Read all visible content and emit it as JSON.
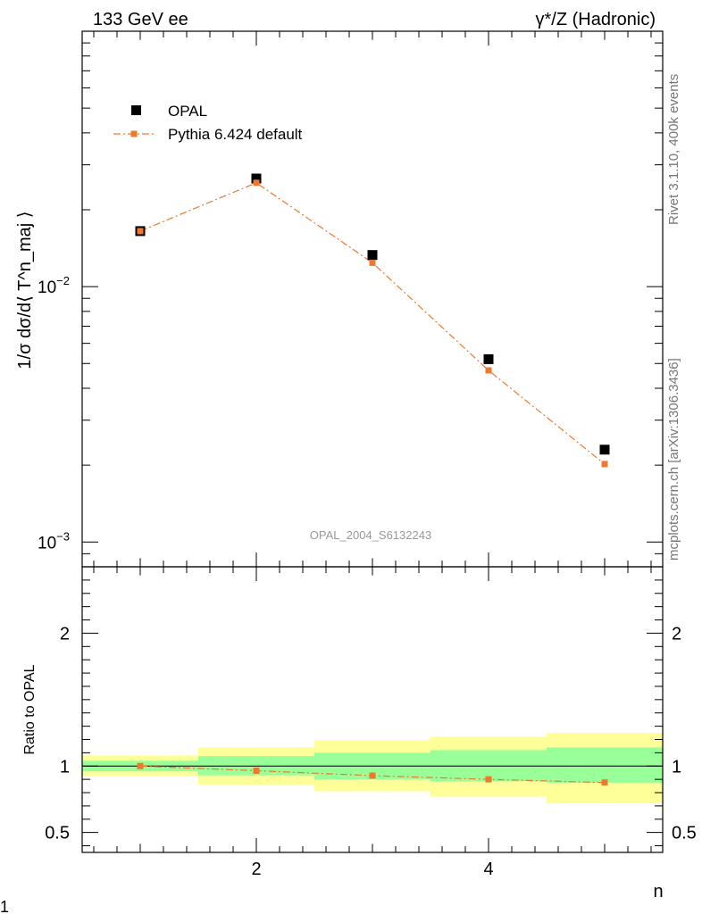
{
  "header": {
    "left": "133 GeV ee",
    "right": "γ*/Z (Hadronic)"
  },
  "side_labels": {
    "rivet": "Rivet 3.1.10,  400k events",
    "source": "mcplots.cern.ch [arXiv:1306.3436]"
  },
  "watermark": "OPAL_2004_S6132243",
  "page_number": "1",
  "colors": {
    "data": "#000000",
    "mc": "#f0782d",
    "band_inner": "#99ff99",
    "band_outer": "#ffff99",
    "side_text": "#777777",
    "watermark": "#999999"
  },
  "chart_data": [
    {
      "type": "scatter",
      "name": "main",
      "ylabel": "1/σ dσ/d⟨ T^n_maj ⟩",
      "yscale": "log",
      "xlim": [
        0.5,
        5.5
      ],
      "ylim": [
        0.0008,
        0.1
      ],
      "yticks": [
        {
          "value": 0.01,
          "base": "10",
          "exp": "−2"
        },
        {
          "value": 0.001,
          "base": "10",
          "exp": "−3"
        }
      ],
      "legend": {
        "placement": "top-left",
        "entries": [
          {
            "label": "OPAL",
            "series": "OPAL"
          },
          {
            "label": "Pythia 6.424 default",
            "series": "Pythia"
          }
        ]
      },
      "series": [
        {
          "name": "OPAL",
          "style": "markers",
          "x": [
            1,
            2,
            3,
            4,
            5
          ],
          "y": [
            0.0165,
            0.0265,
            0.0133,
            0.0052,
            0.0023
          ]
        },
        {
          "name": "Pythia",
          "style": "dash-dot-line",
          "x": [
            1,
            2,
            3,
            4,
            5
          ],
          "y": [
            0.0165,
            0.0255,
            0.0124,
            0.0047,
            0.00202
          ]
        }
      ]
    },
    {
      "type": "line",
      "name": "ratio",
      "ylabel": "Ratio to OPAL",
      "xlabel": "n",
      "xlim": [
        0.5,
        5.5
      ],
      "ylim": [
        0.35,
        2.5
      ],
      "xticks": [
        2,
        4
      ],
      "yticks": [
        {
          "value": 0.5,
          "label": "0.5"
        },
        {
          "value": 1,
          "label": "1"
        },
        {
          "value": 2,
          "label": "2"
        }
      ],
      "bins": [
        [
          0.5,
          1.5
        ],
        [
          1.5,
          2.5
        ],
        [
          2.5,
          3.5
        ],
        [
          3.5,
          4.5
        ],
        [
          4.5,
          5.5
        ]
      ],
      "band_inner": [
        [
          0.96,
          1.04
        ],
        [
          0.93,
          1.075
        ],
        [
          0.9,
          1.1
        ],
        [
          0.885,
          1.12
        ],
        [
          0.875,
          1.14
        ]
      ],
      "band_outer": [
        [
          0.925,
          1.08
        ],
        [
          0.86,
          1.14
        ],
        [
          0.81,
          1.195
        ],
        [
          0.77,
          1.22
        ],
        [
          0.72,
          1.25
        ]
      ],
      "series": [
        {
          "name": "Pythia",
          "x": [
            1,
            2,
            3,
            4,
            5
          ],
          "y": [
            1.0,
            0.965,
            0.928,
            0.9,
            0.876
          ]
        }
      ]
    }
  ]
}
